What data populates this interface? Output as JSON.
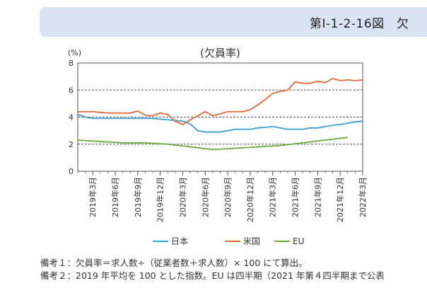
{
  "header": {
    "title": "第Ⅰ-1-2-16図　欠"
  },
  "notes": [
    "備考１：欠員率＝求人数÷（従業者数＋求人数）× 100 にて算出。",
    "備考２：2019 年平均を 100 とした指数。EU は四半期（2021 年第４四半期まで公表"
  ],
  "chart_data": {
    "type": "line",
    "title": "(欠員率)",
    "ylabel": "(%)",
    "xlabel": "",
    "ylim": [
      0,
      8
    ],
    "yticks": [
      0,
      2,
      4,
      6,
      8
    ],
    "grid": "dashed-horizontal",
    "legend_position": "bottom",
    "x_ticks": [
      "2019年3月",
      "2019年6月",
      "2019年9月",
      "2019年12月",
      "2020年3月",
      "2020年6月",
      "2020年9月",
      "2020年12月",
      "2021年3月",
      "2021年6月",
      "2021年9月",
      "2021年12月",
      "2022年3月"
    ],
    "x_range": [
      "2019-01",
      "2022-03"
    ],
    "series": [
      {
        "name": "日本",
        "color": "#3a9fcf",
        "points": [
          [
            "2019-01",
            4.2
          ],
          [
            "2019-02",
            4.0
          ],
          [
            "2019-03",
            3.9
          ],
          [
            "2019-04",
            3.9
          ],
          [
            "2019-05",
            3.9
          ],
          [
            "2019-06",
            3.9
          ],
          [
            "2019-07",
            3.9
          ],
          [
            "2019-08",
            3.9
          ],
          [
            "2019-09",
            3.9
          ],
          [
            "2019-10",
            3.9
          ],
          [
            "2019-11",
            3.9
          ],
          [
            "2019-12",
            3.85
          ],
          [
            "2020-01",
            3.8
          ],
          [
            "2020-02",
            3.75
          ],
          [
            "2020-03",
            3.7
          ],
          [
            "2020-04",
            3.5
          ],
          [
            "2020-05",
            3.0
          ],
          [
            "2020-06",
            2.9
          ],
          [
            "2020-07",
            2.9
          ],
          [
            "2020-08",
            2.9
          ],
          [
            "2020-09",
            3.0
          ],
          [
            "2020-10",
            3.1
          ],
          [
            "2020-11",
            3.1
          ],
          [
            "2020-12",
            3.1
          ],
          [
            "2021-01",
            3.2
          ],
          [
            "2021-02",
            3.25
          ],
          [
            "2021-03",
            3.3
          ],
          [
            "2021-04",
            3.2
          ],
          [
            "2021-05",
            3.1
          ],
          [
            "2021-06",
            3.1
          ],
          [
            "2021-07",
            3.1
          ],
          [
            "2021-08",
            3.2
          ],
          [
            "2021-09",
            3.2
          ],
          [
            "2021-10",
            3.3
          ],
          [
            "2021-11",
            3.4
          ],
          [
            "2021-12",
            3.45
          ],
          [
            "2022-01",
            3.55
          ],
          [
            "2022-02",
            3.65
          ],
          [
            "2022-03",
            3.7
          ]
        ]
      },
      {
        "name": "米国",
        "color": "#e0693a",
        "points": [
          [
            "2019-01",
            4.4
          ],
          [
            "2019-02",
            4.4
          ],
          [
            "2019-03",
            4.4
          ],
          [
            "2019-04",
            4.35
          ],
          [
            "2019-05",
            4.3
          ],
          [
            "2019-06",
            4.3
          ],
          [
            "2019-07",
            4.3
          ],
          [
            "2019-08",
            4.3
          ],
          [
            "2019-09",
            4.45
          ],
          [
            "2019-10",
            4.15
          ],
          [
            "2019-11",
            4.1
          ],
          [
            "2019-12",
            4.3
          ],
          [
            "2020-01",
            4.2
          ],
          [
            "2020-02",
            3.7
          ],
          [
            "2020-03",
            3.45
          ],
          [
            "2020-04",
            3.8
          ],
          [
            "2020-05",
            4.1
          ],
          [
            "2020-06",
            4.4
          ],
          [
            "2020-07",
            4.1
          ],
          [
            "2020-08",
            4.25
          ],
          [
            "2020-09",
            4.4
          ],
          [
            "2020-10",
            4.4
          ],
          [
            "2020-11",
            4.4
          ],
          [
            "2020-12",
            4.55
          ],
          [
            "2021-01",
            4.9
          ],
          [
            "2021-02",
            5.3
          ],
          [
            "2021-03",
            5.75
          ],
          [
            "2021-04",
            5.9
          ],
          [
            "2021-05",
            6.0
          ],
          [
            "2021-06",
            6.6
          ],
          [
            "2021-07",
            6.5
          ],
          [
            "2021-08",
            6.5
          ],
          [
            "2021-09",
            6.65
          ],
          [
            "2021-10",
            6.55
          ],
          [
            "2021-11",
            6.85
          ],
          [
            "2021-12",
            6.7
          ],
          [
            "2022-01",
            6.75
          ],
          [
            "2022-02",
            6.7
          ],
          [
            "2022-03",
            6.75
          ]
        ]
      },
      {
        "name": "EU",
        "color": "#6aab3a",
        "points": [
          [
            "2019-01",
            2.3
          ],
          [
            "2019-04",
            2.2
          ],
          [
            "2019-07",
            2.1
          ],
          [
            "2019-10",
            2.1
          ],
          [
            "2020-01",
            2.0
          ],
          [
            "2020-04",
            1.8
          ],
          [
            "2020-07",
            1.6
          ],
          [
            "2020-10",
            1.7
          ],
          [
            "2021-01",
            1.8
          ],
          [
            "2021-04",
            1.9
          ],
          [
            "2021-07",
            2.1
          ],
          [
            "2021-10",
            2.3
          ],
          [
            "2022-01",
            2.5
          ]
        ]
      }
    ]
  }
}
